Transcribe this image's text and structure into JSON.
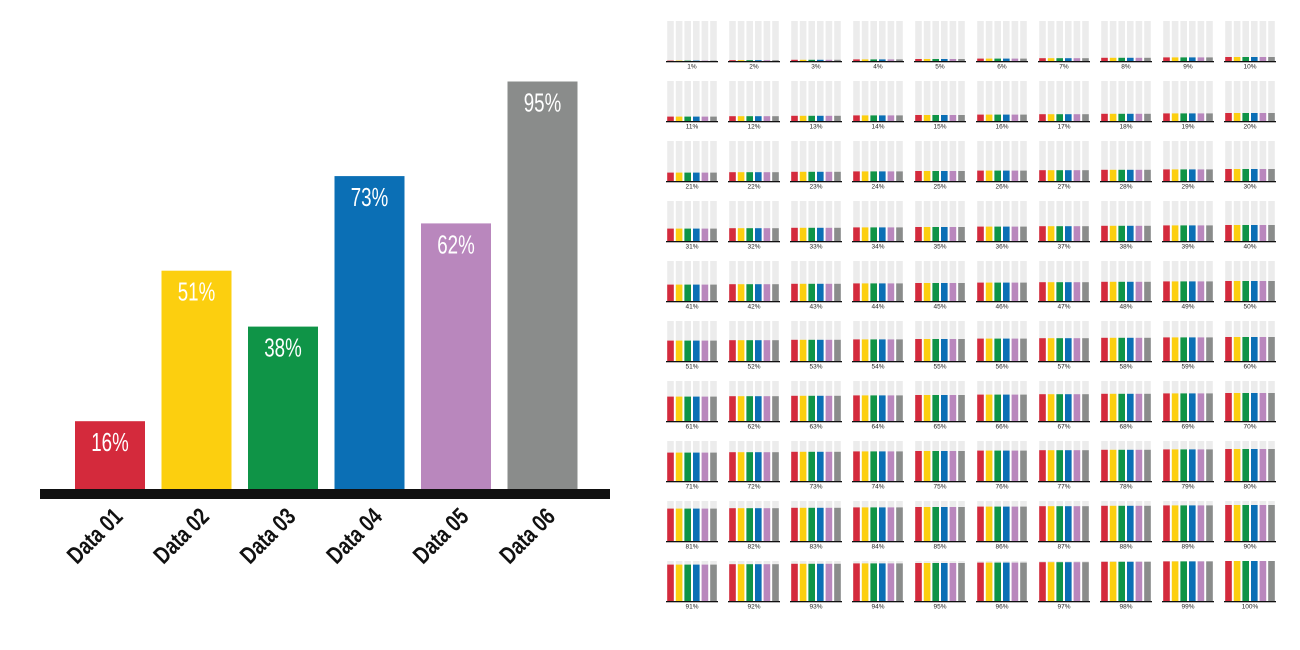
{
  "chart_data": [
    {
      "type": "bar",
      "categories": [
        "Data 01",
        "Data 02",
        "Data 03",
        "Data 04",
        "Data 05",
        "Data 06"
      ],
      "values": [
        16,
        51,
        38,
        73,
        62,
        95
      ],
      "value_labels": [
        "16%",
        "51%",
        "38%",
        "73%",
        "62%",
        "95%"
      ],
      "colors": [
        "#d42a3c",
        "#fccf0f",
        "#0f9447",
        "#0b6fb5",
        "#b987bd",
        "#8a8c8b"
      ],
      "ylim": [
        0,
        100
      ],
      "title": "",
      "xlabel": "",
      "ylabel": "",
      "grid": false,
      "legend": "none"
    },
    {
      "type": "bar",
      "description_of_layout": "small multiples",
      "panels": [
        "1%",
        "2%",
        "3%",
        "4%",
        "5%",
        "6%",
        "7%",
        "8%",
        "9%",
        "10%",
        "11%",
        "12%",
        "13%",
        "14%",
        "15%",
        "16%",
        "17%",
        "18%",
        "19%",
        "20%",
        "21%",
        "22%",
        "23%",
        "24%",
        "25%",
        "26%",
        "27%",
        "28%",
        "29%",
        "30%",
        "31%",
        "32%",
        "33%",
        "34%",
        "35%",
        "36%",
        "37%",
        "38%",
        "39%",
        "40%",
        "41%",
        "42%",
        "43%",
        "44%",
        "45%",
        "46%",
        "47%",
        "48%",
        "49%",
        "50%",
        "51%",
        "52%",
        "53%",
        "54%",
        "55%",
        "56%",
        "57%",
        "58%",
        "59%",
        "60%",
        "61%",
        "62%",
        "63%",
        "64%",
        "65%",
        "66%",
        "67%",
        "68%",
        "69%",
        "70%",
        "71%",
        "72%",
        "73%",
        "74%",
        "75%",
        "76%",
        "77%",
        "78%",
        "79%",
        "80%",
        "81%",
        "82%",
        "83%",
        "84%",
        "85%",
        "86%",
        "87%",
        "88%",
        "89%",
        "90%",
        "91%",
        "92%",
        "93%",
        "94%",
        "95%",
        "96%",
        "97%",
        "98%",
        "99%",
        "100%"
      ],
      "panel_values": [
        1,
        2,
        3,
        4,
        5,
        6,
        7,
        8,
        9,
        10,
        11,
        12,
        13,
        14,
        15,
        16,
        17,
        18,
        19,
        20,
        21,
        22,
        23,
        24,
        25,
        26,
        27,
        28,
        29,
        30,
        31,
        32,
        33,
        34,
        35,
        36,
        37,
        38,
        39,
        40,
        41,
        42,
        43,
        44,
        45,
        46,
        47,
        48,
        49,
        50,
        51,
        52,
        53,
        54,
        55,
        56,
        57,
        58,
        59,
        60,
        61,
        62,
        63,
        64,
        65,
        66,
        67,
        68,
        69,
        70,
        71,
        72,
        73,
        74,
        75,
        76,
        77,
        78,
        79,
        80,
        81,
        82,
        83,
        84,
        85,
        86,
        87,
        88,
        89,
        90,
        91,
        92,
        93,
        94,
        95,
        96,
        97,
        98,
        99,
        100
      ],
      "bar_colors": [
        "#d42a3c",
        "#fccf0f",
        "#0f9447",
        "#0b6fb5",
        "#b987bd",
        "#8a8c8b"
      ],
      "track_color": "#ececec",
      "ylim": [
        0,
        100
      ]
    }
  ]
}
